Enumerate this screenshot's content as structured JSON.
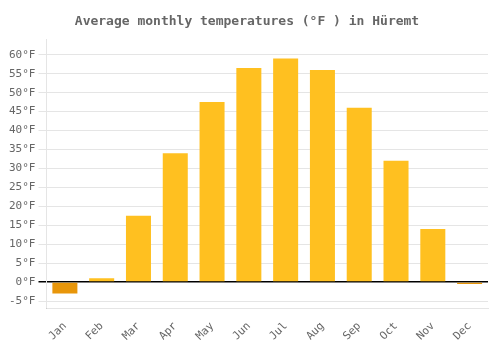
{
  "chart_data": {
    "type": "bar",
    "title": "Average monthly temperatures (°F ) in Hüremt",
    "categories": [
      "Jan",
      "Feb",
      "Mar",
      "Apr",
      "May",
      "Jun",
      "Jul",
      "Aug",
      "Sep",
      "Oct",
      "Nov",
      "Dec"
    ],
    "values": [
      -3.0,
      1.0,
      17.5,
      34.0,
      47.5,
      56.5,
      59.0,
      56.0,
      46.0,
      32.0,
      14.0,
      -0.5
    ],
    "colors": [
      "#E8960A",
      "#FFC020",
      "#FFC020",
      "#FFC020",
      "#FFC020",
      "#FFC020",
      "#FFC020",
      "#FFC020",
      "#FFC020",
      "#FFC020",
      "#FFC020",
      "#E8960A"
    ],
    "ylim": [
      -7,
      64
    ],
    "yticks": [
      {
        "value": -5,
        "label": "-5°F"
      },
      {
        "value": 0,
        "label": "0°F"
      },
      {
        "value": 5,
        "label": "5°F"
      },
      {
        "value": 10,
        "label": "10°F"
      },
      {
        "value": 15,
        "label": "15°F"
      },
      {
        "value": 20,
        "label": "20°F"
      },
      {
        "value": 25,
        "label": "25°F"
      },
      {
        "value": 30,
        "label": "30°F"
      },
      {
        "value": 35,
        "label": "35°F"
      },
      {
        "value": 40,
        "label": "40°F"
      },
      {
        "value": 45,
        "label": "45°F"
      },
      {
        "value": 50,
        "label": "50°F"
      },
      {
        "value": 55,
        "label": "55°F"
      },
      {
        "value": 60,
        "label": "60°F"
      }
    ],
    "grid": true
  }
}
